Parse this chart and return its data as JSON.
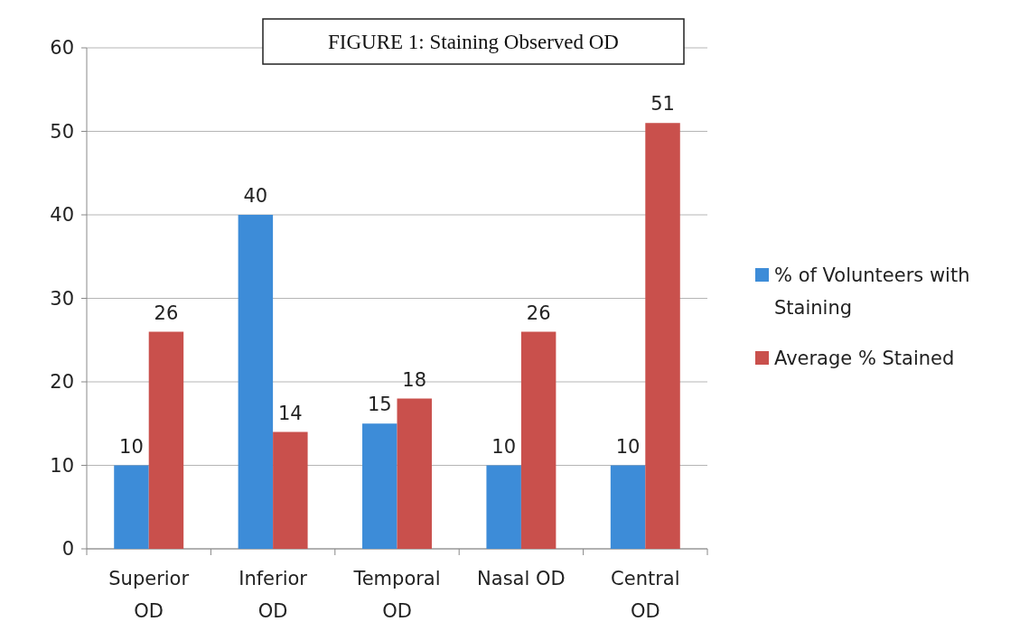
{
  "chart_data": {
    "type": "bar",
    "title": "FIGURE 1: Staining Observed OD",
    "categories": [
      "Superior OD",
      "Inferior OD",
      "Temporal OD",
      "Nasal OD",
      "Central OD"
    ],
    "series": [
      {
        "name": "% of Volunteers with Staining",
        "color": "#3d8cd8",
        "values": [
          10,
          40,
          15,
          10,
          10
        ]
      },
      {
        "name": "Average % Stained",
        "color": "#c9504c",
        "values": [
          26,
          14,
          18,
          26,
          51
        ]
      }
    ],
    "ylim": [
      0,
      60
    ],
    "yticks": [
      0,
      10,
      20,
      30,
      40,
      50,
      60
    ],
    "grid": "y",
    "legend": "right",
    "data_labels": true
  }
}
